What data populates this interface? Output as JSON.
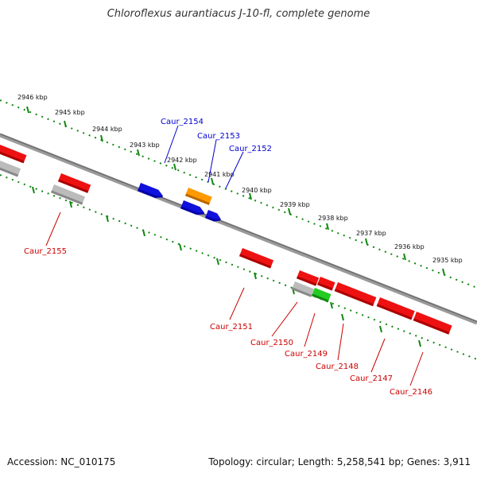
{
  "title": "Chloroflexus aurantiacus J-10-fl, complete genome",
  "footer": {
    "accession": "Accession: NC_010175",
    "topology": "Topology: circular; Length: 5,258,541 bp; Genes: 3,911"
  },
  "colors": {
    "forward_gene": "#ee1111",
    "reverse_gene": "#1111dd",
    "pseudo_gene": "#bbbbbb",
    "orange_gene": "#ff9900",
    "green_gene": "#22cc22",
    "tick_marks": "#118811",
    "backbone": "#808080"
  },
  "kbp_labels": [
    "2946 kbp",
    "2945 kbp",
    "2944 kbp",
    "2943 kbp",
    "2942 kbp",
    "2941 kbp",
    "2940 kbp",
    "2939 kbp",
    "2938 kbp",
    "2937 kbp",
    "2936 kbp",
    "2935 kbp"
  ],
  "gene_labels_blue": [
    "Caur_2154",
    "Caur_2153",
    "Caur_2152"
  ],
  "gene_labels_red": [
    "Caur_2155",
    "Caur_2151",
    "Caur_2150",
    "Caur_2149",
    "Caur_2148",
    "Caur_2147",
    "Caur_2146"
  ]
}
